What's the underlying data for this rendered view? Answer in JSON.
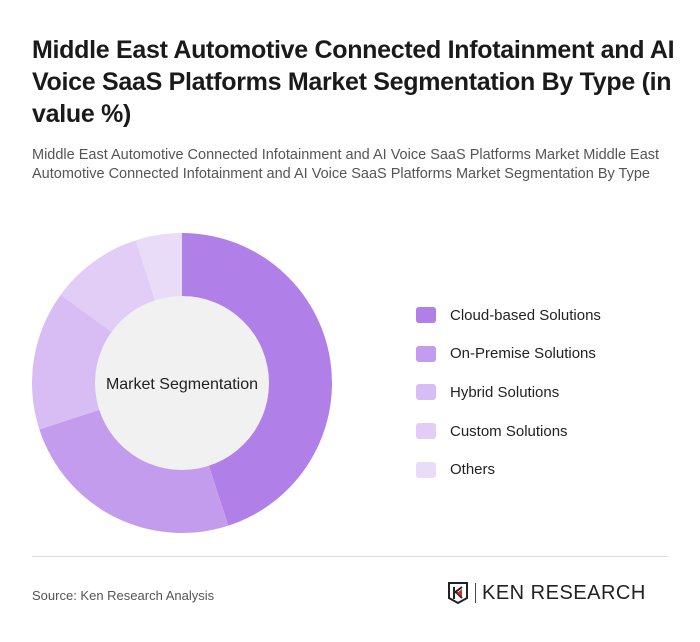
{
  "title": "Middle East Automotive Connected Infotainment and AI Voice SaaS Platforms Market Segmentation By Type (in value %)",
  "subtitle": "Middle East Automotive Connected Infotainment and AI Voice SaaS Platforms Market Middle East Automotive Connected Infotainment and AI Voice SaaS Platforms Market Segmentation By Type",
  "source": "Source: Ken Research Analysis",
  "logo": {
    "text": "KEN RESEARCH"
  },
  "chart_data": {
    "type": "pie",
    "variant": "donut",
    "center_label": "Market Segmentation",
    "legend_position": "right",
    "categories": [
      "Cloud-based Solutions",
      "On-Premise Solutions",
      "Hybrid Solutions",
      "Custom Solutions",
      "Others"
    ],
    "values": [
      45,
      25,
      15,
      10,
      5
    ],
    "colors": [
      "#b07fe8",
      "#c49cee",
      "#d8bdf5",
      "#e1cdf6",
      "#e9dcf8"
    ]
  }
}
